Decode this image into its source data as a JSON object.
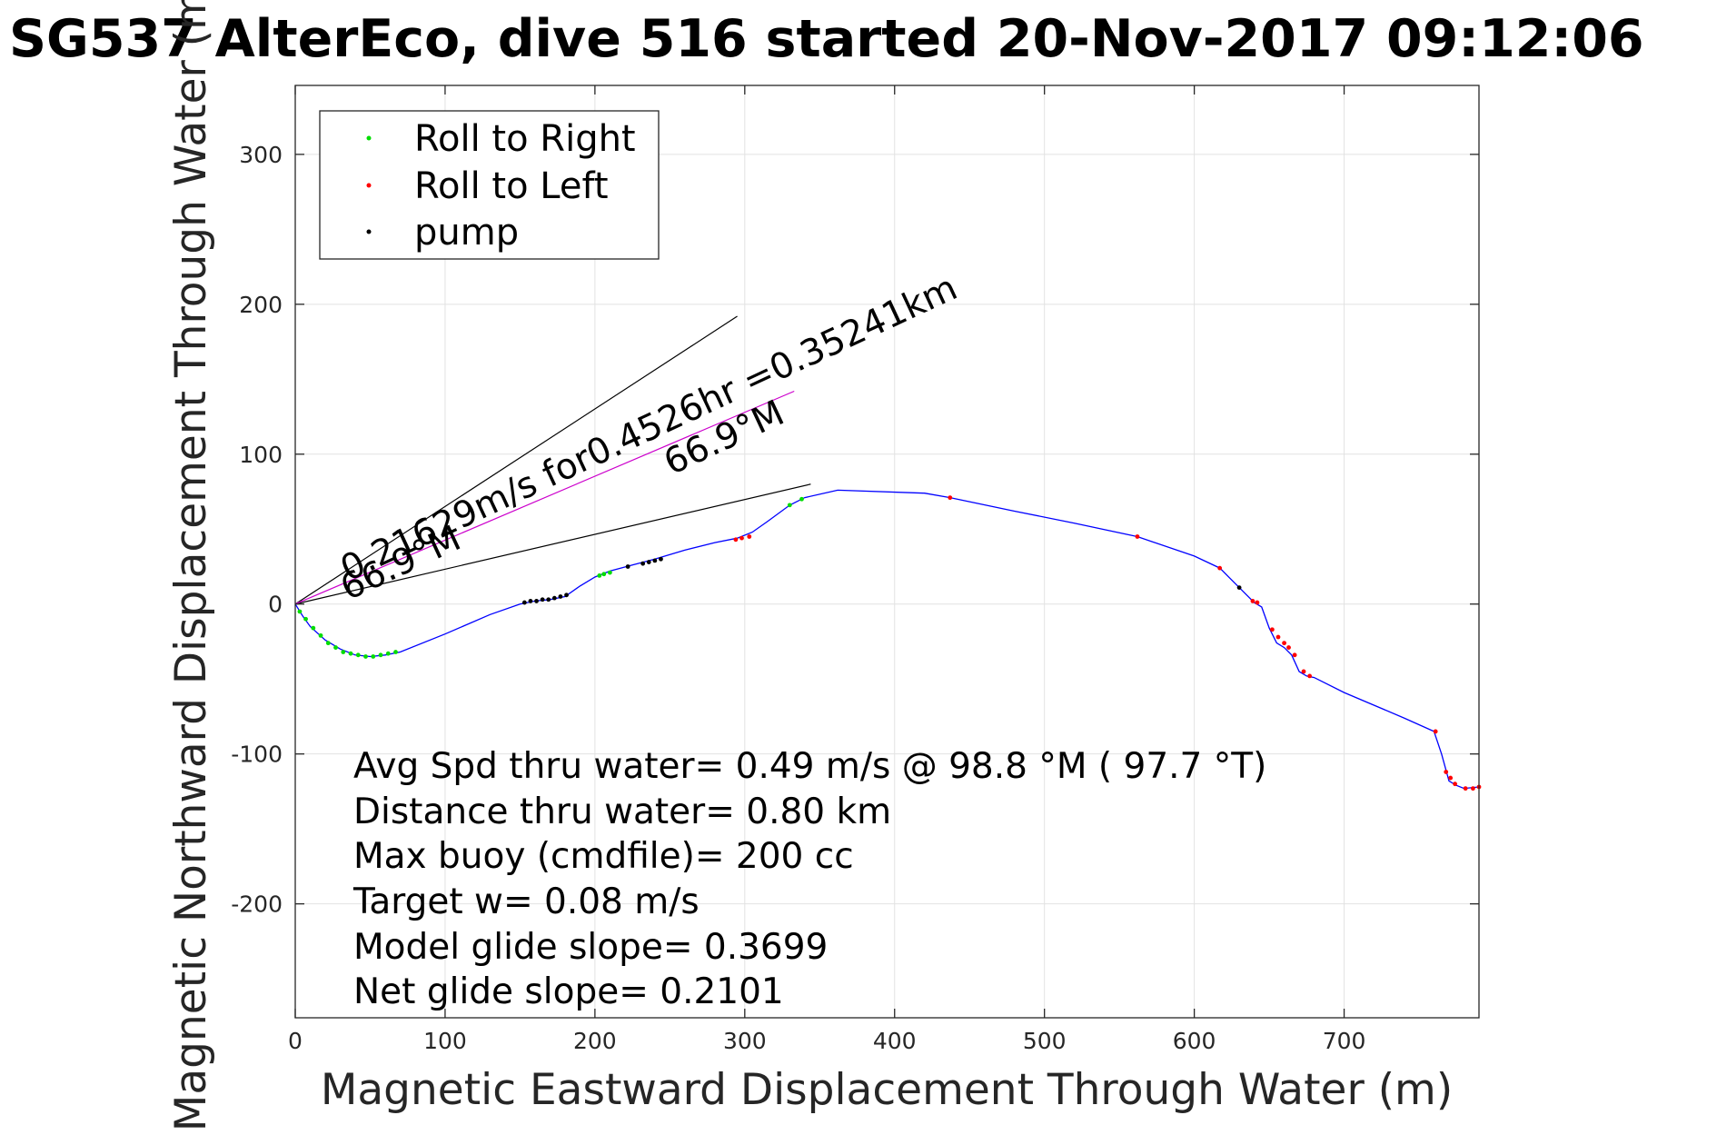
{
  "title": "SG537 AlterEco, dive 516 started 20-Nov-2017 09:12:06",
  "colors": {
    "track": "#0000ff",
    "roll_right": "#00dd00",
    "roll_left": "#ff0000",
    "pump": "#000000",
    "heading_line": "#cc00cc",
    "grid": "#e2e2e2",
    "axes": "#262626"
  },
  "legend": [
    {
      "label": "Roll to Right",
      "color": "#00dd00"
    },
    {
      "label": "Roll to Left",
      "color": "#ff0000"
    },
    {
      "label": "pump",
      "color": "#000000"
    }
  ],
  "annotations": {
    "speed_line": "0.21629m/s for0.4526hr =0.35241km",
    "heading_line": "66.9°M",
    "heading_origin": "66.9°M"
  },
  "stats": [
    "Avg Spd thru water=  0.49 m/s @  98.8 °M ( 97.7 °T)",
    "Distance thru water=  0.80 km",
    "Max buoy (cmdfile)= 200 cc",
    "Target w= 0.08 m/s",
    "Model glide slope= 0.3699",
    "Net glide slope= 0.2101"
  ],
  "chart_data": {
    "type": "line",
    "title": "SG537 AlterEco, dive 516 started 20-Nov-2017 09:12:06",
    "xlabel": "Magnetic Eastward Displacement Through Water (m)",
    "ylabel": "Magnetic Northward Displacement Through Water (m)",
    "xlim": [
      0,
      790
    ],
    "ylim": [
      -276,
      346
    ],
    "xticks": [
      0,
      100,
      200,
      300,
      400,
      500,
      600,
      700
    ],
    "yticks": [
      -200,
      -100,
      0,
      100,
      200,
      300
    ],
    "grid": true,
    "legend_position": "top-left",
    "track": {
      "x": [
        0,
        5,
        10,
        20,
        30,
        40,
        50,
        60,
        70,
        100,
        130,
        150,
        160,
        170,
        180,
        190,
        200,
        210,
        225,
        240,
        260,
        280,
        295,
        305,
        315,
        330,
        340,
        362,
        420,
        437,
        480,
        520,
        562,
        600,
        617,
        630,
        640,
        645,
        650,
        655,
        660,
        665,
        670,
        675,
        680,
        700,
        740,
        760,
        765,
        770,
        775,
        780,
        790
      ],
      "y": [
        0,
        -8,
        -15,
        -24,
        -30,
        -34,
        -35,
        -34,
        -32,
        -20,
        -7,
        0,
        2,
        3,
        5,
        12,
        18,
        22,
        26,
        30,
        36,
        41,
        44,
        48,
        55,
        66,
        71,
        76,
        74,
        71,
        62,
        54,
        45,
        32,
        24,
        11,
        1,
        -2,
        -16,
        -26,
        -29,
        -34,
        -45,
        -48,
        -49,
        -59,
        -76,
        -85,
        -100,
        -118,
        -121,
        -123,
        -122
      ]
    },
    "roll_right_points": {
      "x": [
        3,
        7,
        12,
        17,
        22,
        27,
        32,
        37,
        42,
        47,
        52,
        57,
        62,
        67,
        203,
        206,
        210,
        330,
        338
      ],
      "y": [
        -5,
        -10,
        -16,
        -21,
        -26,
        -29,
        -32,
        -33,
        -34,
        -35,
        -35,
        -34,
        -33,
        -32,
        19,
        20,
        21,
        66,
        70
      ]
    },
    "roll_left_points": {
      "x": [
        294,
        298,
        303,
        437,
        562,
        617,
        639,
        642,
        652,
        656,
        660,
        663,
        667,
        673,
        677,
        761,
        768,
        771,
        774,
        781,
        786,
        790
      ],
      "y": [
        43,
        44,
        45,
        71,
        45,
        24,
        2,
        1,
        -17,
        -22,
        -26,
        -29,
        -34,
        -45,
        -48,
        -85,
        -112,
        -116,
        -120,
        -123,
        -123,
        -122
      ]
    },
    "pump_points": {
      "x": [
        153,
        157,
        161,
        165,
        169,
        173,
        177,
        181,
        222,
        232,
        236,
        240,
        244,
        630
      ],
      "y": [
        1,
        2,
        2,
        3,
        3,
        4,
        5,
        6,
        25,
        27,
        28,
        29,
        30,
        11
      ]
    },
    "reference_lines": [
      {
        "x": [
          0,
          295
        ],
        "y": [
          0,
          192
        ]
      },
      {
        "x": [
          0,
          344
        ],
        "y": [
          0,
          80
        ]
      },
      {
        "x": [
          0,
          333
        ],
        "y": [
          0,
          142
        ]
      }
    ]
  }
}
